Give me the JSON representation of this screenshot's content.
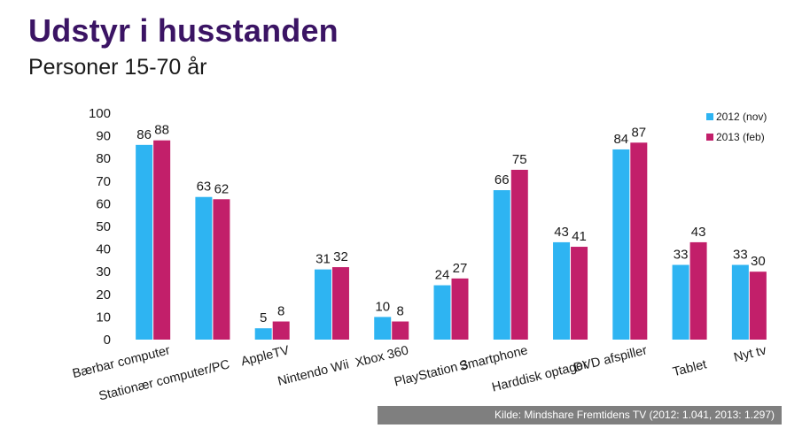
{
  "header": {
    "title": "Udstyr i husstanden",
    "subtitle": "Personer 15-70 år"
  },
  "source_note": "Kilde: Mindshare Fremtidens TV (2012: 1.041, 2013: 1.297)",
  "colors": {
    "series_2012": "#2eb4f2",
    "series_2013": "#c21f6a",
    "title": "#3b1464"
  },
  "chart_data": {
    "type": "bar",
    "title": "Udstyr i husstanden",
    "subtitle": "Personer 15-70 år",
    "categories": [
      "Bærbar computer",
      "Stationær computer/PC",
      "AppleTV",
      "Nintendo Wii",
      "Xbox 360",
      "PlayStation 3",
      "Smartphone",
      "Harddisk optager",
      "DVD afspiller",
      "Tablet",
      "Nyt tv"
    ],
    "series": [
      {
        "name": "2012 (nov)",
        "values": [
          86,
          63,
          5,
          31,
          10,
          24,
          66,
          43,
          84,
          33,
          33
        ]
      },
      {
        "name": "2013 (feb)",
        "values": [
          88,
          62,
          8,
          32,
          8,
          27,
          75,
          41,
          87,
          43,
          30
        ]
      }
    ],
    "yticks": [
      0,
      10,
      20,
      30,
      40,
      50,
      60,
      70,
      80,
      90,
      100
    ],
    "ylim": [
      0,
      100
    ],
    "grid": false,
    "legend": "top-right",
    "data_labels": true
  }
}
